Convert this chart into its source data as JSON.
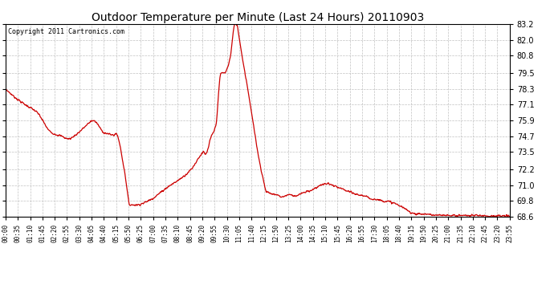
{
  "title": "Outdoor Temperature per Minute (Last 24 Hours) 20110903",
  "copyright_text": "Copyright 2011 Cartronics.com",
  "line_color": "#cc0000",
  "background_color": "#ffffff",
  "grid_color": "#bbbbbb",
  "ylim": [
    68.6,
    83.2
  ],
  "yticks": [
    68.6,
    69.8,
    71.0,
    72.2,
    73.5,
    74.7,
    75.9,
    77.1,
    78.3,
    79.5,
    80.8,
    82.0,
    83.2
  ],
  "xtick_labels": [
    "00:00",
    "00:35",
    "01:10",
    "01:45",
    "02:20",
    "02:55",
    "03:30",
    "04:05",
    "04:40",
    "05:15",
    "05:50",
    "06:25",
    "07:00",
    "07:35",
    "08:10",
    "08:45",
    "09:20",
    "09:55",
    "10:30",
    "11:05",
    "11:40",
    "12:15",
    "12:50",
    "13:25",
    "14:00",
    "14:35",
    "15:10",
    "15:45",
    "16:20",
    "16:55",
    "17:30",
    "18:05",
    "18:40",
    "19:15",
    "19:50",
    "20:25",
    "21:00",
    "21:35",
    "22:10",
    "22:45",
    "23:20",
    "23:55"
  ]
}
